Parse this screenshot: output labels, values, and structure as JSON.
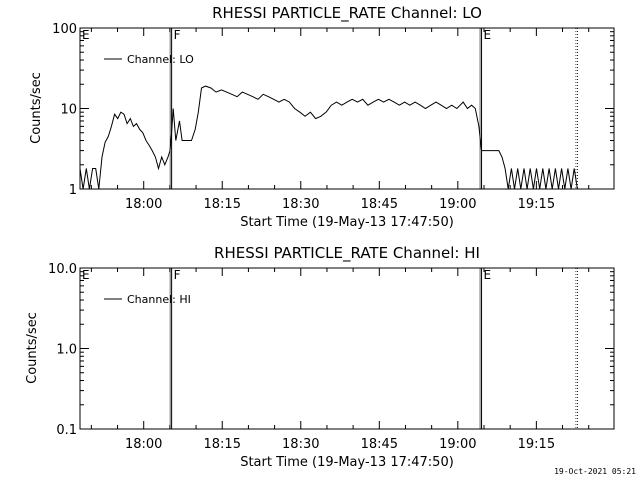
{
  "stamp": "19-Oct-2021 05:21",
  "chart_data": [
    {
      "type": "line",
      "title": "RHESSI PARTICLE_RATE Channel: LO",
      "xlabel": "Start Time (19-May-13 17:47:50)",
      "ylabel": "Counts/sec",
      "yscale": "log",
      "ylim": [
        1,
        100
      ],
      "xlim_minutes_from_start": [
        0,
        102
      ],
      "xticks": [
        {
          "label": "18:00",
          "t": 12.17
        },
        {
          "label": "18:15",
          "t": 27.17
        },
        {
          "label": "18:30",
          "t": 42.17
        },
        {
          "label": "18:45",
          "t": 57.17
        },
        {
          "label": "19:00",
          "t": 72.17
        },
        {
          "label": "19:15",
          "t": 87.17
        }
      ],
      "yticks": [
        {
          "label": "1",
          "v": 1
        },
        {
          "label": "10",
          "v": 10
        },
        {
          "label": "100",
          "v": 100
        }
      ],
      "legend": {
        "label": "Channel: LO",
        "position": "top-left"
      },
      "flags": [
        {
          "label": "E",
          "t": 0,
          "style": "solid"
        },
        {
          "label": "F",
          "t": 17.5,
          "style": "solid"
        },
        {
          "label": "E",
          "t": 76.7,
          "style": "solid"
        },
        {
          "label": "",
          "t": 95,
          "style": "dotted"
        }
      ],
      "series": [
        {
          "x": [
            0,
            0.6,
            1.2,
            1.8,
            2.4,
            3.0,
            3.6,
            4.2,
            4.8,
            5.4,
            6.0,
            6.6,
            7.2,
            7.8,
            8.4,
            9.0,
            9.6,
            10.2,
            10.8,
            11.4,
            12.0,
            12.6,
            13.2,
            13.8,
            14.4,
            15.0,
            15.6,
            16.2,
            16.8,
            17.2,
            17.5,
            17.8,
            18.3,
            19.0,
            19.5,
            20.2,
            20.8,
            21.3,
            22.0,
            22.6,
            23.2,
            24.0,
            25.0,
            26.0,
            27.0,
            28.0,
            29.0,
            30.0,
            31.0,
            32.0,
            33.0,
            34.0,
            35.0,
            36.0,
            37.0,
            38.0,
            39.0,
            40.0,
            41.0,
            42.0,
            43.0,
            44.0,
            45.0,
            46.0,
            47.0,
            48.0,
            49.0,
            50.0,
            51.0,
            52.0,
            53.0,
            54.0,
            55.0,
            56.0,
            57.0,
            58.0,
            59.0,
            60.0,
            61.0,
            62.0,
            63.0,
            64.0,
            65.0,
            66.0,
            67.0,
            68.0,
            69.0,
            70.0,
            71.0,
            72.0,
            72.6,
            73.2,
            74.0,
            74.8,
            75.5,
            76.2,
            76.7,
            77.2,
            78.0,
            79.0,
            80.0,
            80.6,
            81.2,
            81.8,
            82.4,
            83.0,
            83.6,
            84.2,
            84.8,
            85.4,
            86.0,
            86.6,
            87.2,
            87.8,
            88.4,
            89.0,
            89.6,
            90.2,
            90.8,
            91.4,
            92.0,
            92.6,
            93.2,
            93.8,
            94.4,
            95.0
          ],
          "values": [
            1.8,
            1,
            1.8,
            1,
            1.8,
            1.8,
            1,
            2.5,
            3.8,
            4.5,
            6,
            8.5,
            7.5,
            9,
            8.5,
            6.5,
            7.5,
            6,
            6.5,
            5.5,
            5,
            4,
            3.5,
            3,
            2.5,
            1.8,
            2.5,
            2,
            2.5,
            3,
            5,
            10,
            4,
            7,
            4,
            4,
            4,
            4,
            5.5,
            9,
            18,
            19,
            18,
            16,
            17,
            16,
            15,
            14,
            16,
            15,
            14,
            13,
            15,
            14,
            13,
            12,
            13,
            12,
            10,
            9,
            8,
            9,
            7.5,
            8,
            9,
            11,
            12,
            11,
            12,
            13,
            12,
            13,
            11,
            12,
            13,
            12,
            13,
            12,
            11,
            12,
            11,
            12,
            11,
            10,
            11,
            12,
            11,
            10,
            11,
            10,
            11,
            12,
            10,
            11,
            10,
            6,
            3,
            3,
            3,
            3,
            3,
            2.5,
            1.8,
            1,
            1.8,
            1,
            1.8,
            1,
            1.8,
            1,
            1.8,
            1,
            1.8,
            1,
            1.8,
            1,
            1.8,
            1,
            1.8,
            1,
            1.8,
            1,
            1.8,
            1,
            1.8,
            1
          ]
        }
      ]
    },
    {
      "type": "line",
      "title": "RHESSI PARTICLE_RATE Channel: HI",
      "xlabel": "Start Time (19-May-13 17:47:50)",
      "ylabel": "Counts/sec",
      "yscale": "log",
      "ylim": [
        0.1,
        10
      ],
      "xlim_minutes_from_start": [
        0,
        102
      ],
      "xticks": [
        {
          "label": "18:00",
          "t": 12.17
        },
        {
          "label": "18:15",
          "t": 27.17
        },
        {
          "label": "18:30",
          "t": 42.17
        },
        {
          "label": "18:45",
          "t": 57.17
        },
        {
          "label": "19:00",
          "t": 72.17
        },
        {
          "label": "19:15",
          "t": 87.17
        }
      ],
      "yticks": [
        {
          "label": "0.1",
          "v": 0.1
        },
        {
          "label": "1.0",
          "v": 1
        },
        {
          "label": "10.0",
          "v": 10
        }
      ],
      "legend": {
        "label": "Channel: HI",
        "position": "top-left"
      },
      "flags": [
        {
          "label": "E",
          "t": 0,
          "style": "solid"
        },
        {
          "label": "F",
          "t": 17.5,
          "style": "solid"
        },
        {
          "label": "E",
          "t": 76.7,
          "style": "solid"
        },
        {
          "label": "",
          "t": 95,
          "style": "dotted"
        }
      ],
      "series": [
        {
          "x": [],
          "values": []
        }
      ]
    }
  ]
}
